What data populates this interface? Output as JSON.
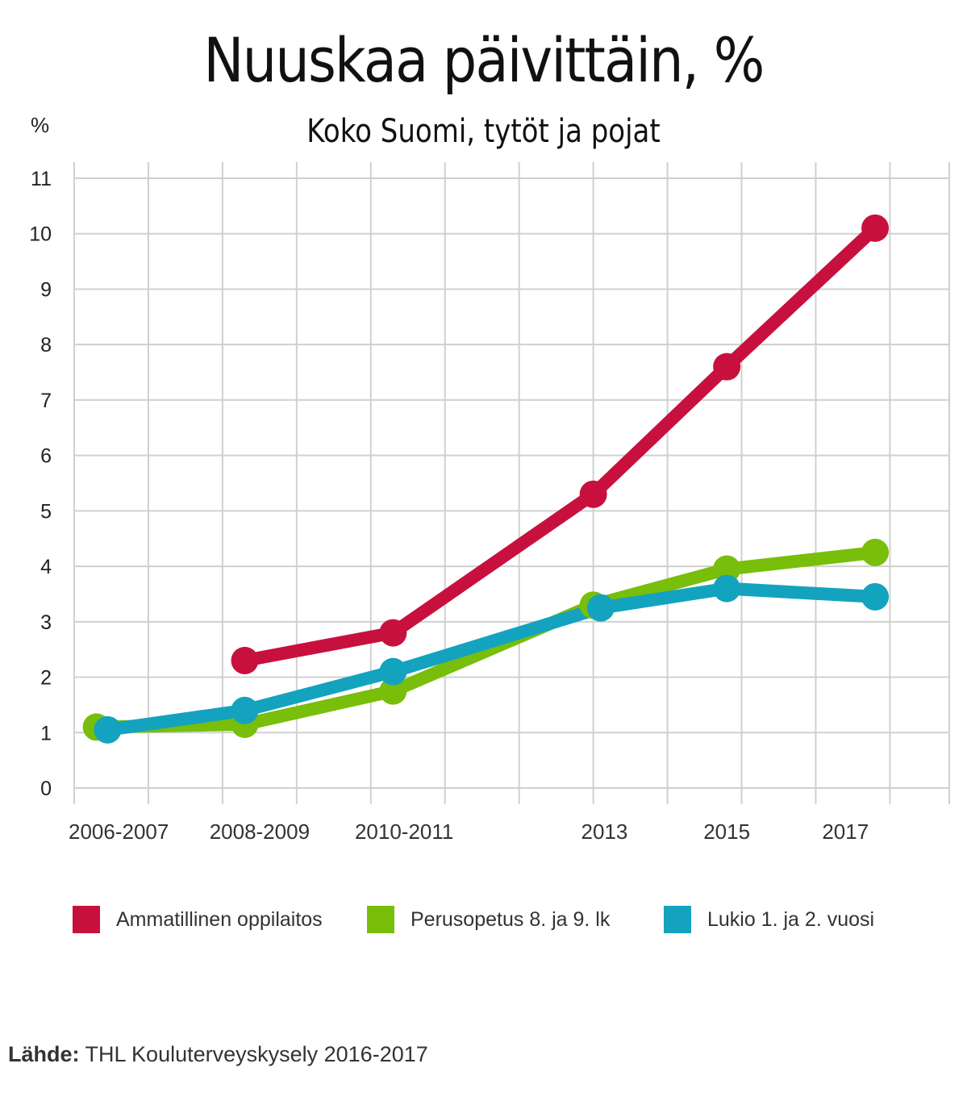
{
  "title": "Nuuskaa päivittäin, %",
  "subtitle": "Koko Suomi, tytöt ja pojat",
  "source": {
    "label": "Lähde:",
    "text": "THL Kouluterveyskysely 2016-2017"
  },
  "chart_data": {
    "type": "line",
    "title": "Nuuskaa päivittäin, %",
    "subtitle": "Koko Suomi, tytöt ja pojat",
    "ylabel": "%",
    "xlabel": "",
    "ylim": [
      0,
      11
    ],
    "yticks": [
      0,
      1,
      2,
      3,
      4,
      5,
      6,
      7,
      8,
      9,
      10,
      11
    ],
    "xtick_labels": [
      "2006-2007",
      "2008-2009",
      "2010-2011",
      "2013",
      "2015",
      "2017"
    ],
    "grid": true,
    "legend_position": "bottom",
    "series": [
      {
        "name": "Ammatillinen oppilaitos",
        "color": "#c8103e",
        "x": [
          2008.3,
          2010.3,
          2013.0,
          2014.8,
          2016.8
        ],
        "values": [
          2.3,
          2.8,
          5.3,
          7.6,
          10.1
        ]
      },
      {
        "name": "Perusopetus 8. ja 9. lk",
        "color": "#78be0a",
        "x": [
          2006.3,
          2008.3,
          2010.3,
          2013.0,
          2014.8,
          2016.8
        ],
        "values": [
          1.1,
          1.15,
          1.75,
          3.3,
          3.95,
          4.25
        ]
      },
      {
        "name": "Lukio 1. ja 2. vuosi",
        "color": "#13a3bf",
        "x": [
          2006.45,
          2008.3,
          2010.3,
          2013.1,
          2014.8,
          2016.8
        ],
        "values": [
          1.05,
          1.4,
          2.1,
          3.25,
          3.6,
          3.45
        ]
      }
    ]
  }
}
